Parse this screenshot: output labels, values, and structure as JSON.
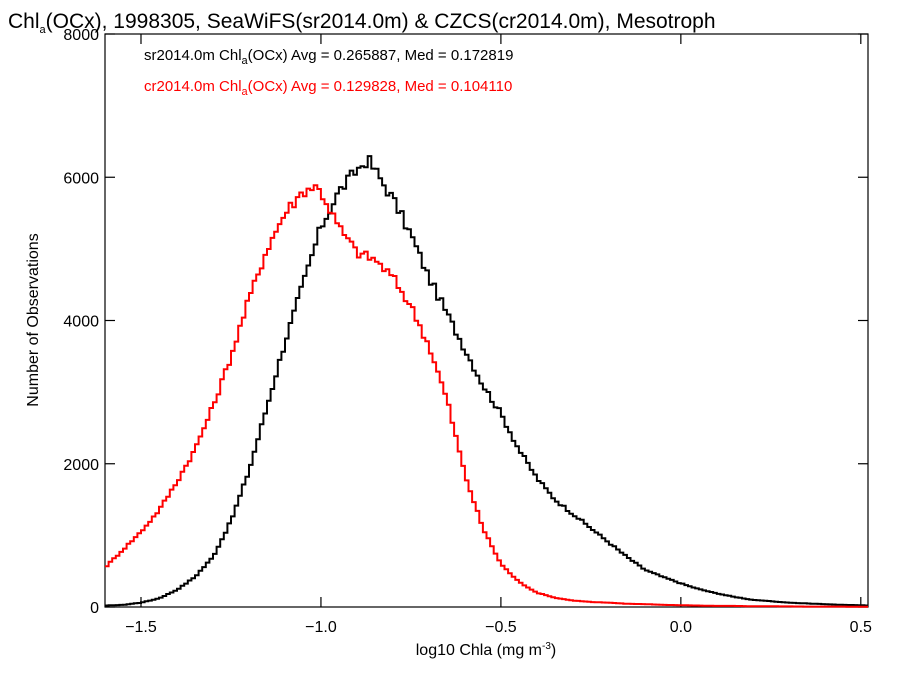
{
  "chart_data": {
    "type": "line",
    "title": {
      "pre": "Chl",
      "sub": "a",
      "post": "(OCx), 1998305, SeaWiFS(sr2014.0m) & CZCS(cr2014.0m), Mesotroph"
    },
    "xlabel": {
      "pre": "log10 Chla (mg m",
      "sup": "-3",
      "post": ")"
    },
    "ylabel": "Number of Observations",
    "xlim": [
      -1.6,
      0.52
    ],
    "ylim": [
      0,
      8000
    ],
    "x_ticks": [
      -1.5,
      -1.0,
      -0.5,
      0.0,
      0.5
    ],
    "x_tick_labels": [
      "−1.5",
      "−1.0",
      "−0.5",
      "0.0",
      "0.5"
    ],
    "y_ticks": [
      0,
      2000,
      4000,
      6000,
      8000
    ],
    "y_tick_labels": [
      "0",
      "2000",
      "4000",
      "6000",
      "8000"
    ],
    "grid": false,
    "legend_position": "top-left",
    "series": [
      {
        "name": "sr2014.0m",
        "color": "#000000",
        "legend": {
          "pre": "sr2014.0m Chl",
          "sub": "a",
          "post": "(OCx) Avg = 0.265887, Med = 0.172819"
        },
        "x": [
          -1.6,
          -1.55,
          -1.5,
          -1.45,
          -1.4,
          -1.35,
          -1.3,
          -1.25,
          -1.2,
          -1.15,
          -1.1,
          -1.05,
          -1.0,
          -0.95,
          -0.9,
          -0.87,
          -0.85,
          -0.8,
          -0.75,
          -0.7,
          -0.65,
          -0.6,
          -0.55,
          -0.5,
          -0.45,
          -0.4,
          -0.35,
          -0.3,
          -0.25,
          -0.2,
          -0.15,
          -0.1,
          -0.05,
          0.0,
          0.05,
          0.1,
          0.15,
          0.2,
          0.25,
          0.3,
          0.35,
          0.4,
          0.45,
          0.5,
          0.52
        ],
        "y": [
          20,
          30,
          60,
          120,
          240,
          420,
          700,
          1200,
          1900,
          2800,
          3700,
          4500,
          5300,
          5800,
          6100,
          6250,
          6100,
          5700,
          5200,
          4600,
          4100,
          3600,
          3100,
          2700,
          2200,
          1800,
          1500,
          1300,
          1100,
          900,
          700,
          520,
          420,
          330,
          250,
          190,
          140,
          100,
          80,
          60,
          50,
          40,
          30,
          25,
          20
        ]
      },
      {
        "name": "cr2014.0m",
        "color": "#ff0000",
        "legend": {
          "pre": "cr2014.0m Chl",
          "sub": "a",
          "post": "(OCx) Avg = 0.129828, Med = 0.104110"
        },
        "x": [
          -1.6,
          -1.55,
          -1.5,
          -1.45,
          -1.4,
          -1.35,
          -1.3,
          -1.25,
          -1.2,
          -1.15,
          -1.1,
          -1.05,
          -1.02,
          -1.0,
          -0.95,
          -0.9,
          -0.85,
          -0.8,
          -0.75,
          -0.7,
          -0.65,
          -0.6,
          -0.55,
          -0.5,
          -0.45,
          -0.4,
          -0.35,
          -0.3,
          -0.25,
          -0.2,
          -0.15,
          -0.1,
          -0.05,
          0.0,
          0.05,
          0.1,
          0.15,
          0.2,
          0.25,
          0.3,
          0.35,
          0.4,
          0.45,
          0.5,
          0.52
        ],
        "y": [
          550,
          800,
          1050,
          1350,
          1750,
          2200,
          2800,
          3500,
          4300,
          5000,
          5500,
          5800,
          5880,
          5800,
          5300,
          4950,
          4850,
          4600,
          4200,
          3650,
          2900,
          1850,
          1100,
          600,
          350,
          200,
          130,
          90,
          70,
          60,
          45,
          40,
          30,
          25,
          20,
          15,
          15,
          10,
          10,
          8,
          6,
          5,
          5,
          4,
          4
        ]
      }
    ]
  }
}
